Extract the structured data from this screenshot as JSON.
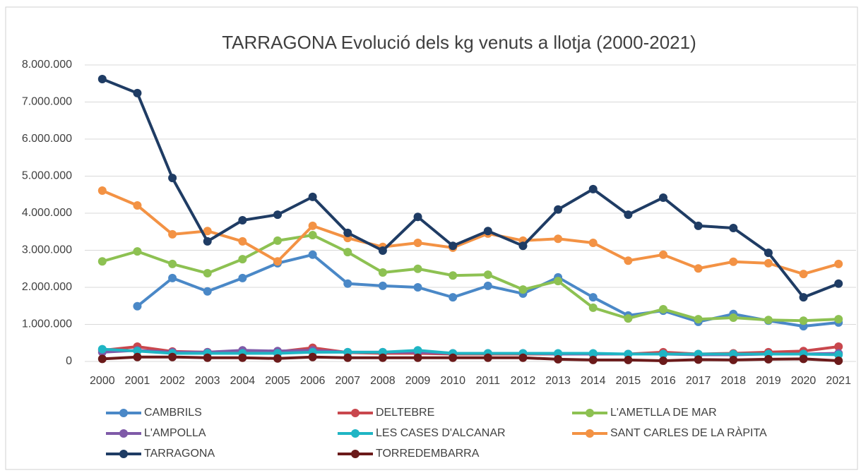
{
  "chart_data": {
    "type": "line",
    "title": "TARRAGONA Evolució dels kg venuts a llotja (2000-2021)",
    "categories": [
      "2000",
      "2001",
      "2002",
      "2003",
      "2004",
      "2005",
      "2006",
      "2007",
      "2008",
      "2009",
      "2010",
      "2011",
      "2012",
      "2013",
      "2014",
      "2015",
      "2016",
      "2017",
      "2018",
      "2019",
      "2020",
      "2021"
    ],
    "ylim": [
      0,
      8000000
    ],
    "yticks": [
      0,
      {
        "value": 1000000,
        "label": "1.000.000"
      },
      {
        "value": 2000000,
        "label": "2.000.000"
      },
      {
        "value": 3000000,
        "label": "3.000.000"
      },
      {
        "value": 4000000,
        "label": "4.000.000"
      },
      {
        "value": 5000000,
        "label": "5.000.000"
      },
      {
        "value": 6000000,
        "label": "6.000.000"
      },
      {
        "value": 7000000,
        "label": "7.000.000"
      },
      {
        "value": 8000000,
        "label": "8.000.000"
      }
    ],
    "grid": true,
    "legend": "bottom",
    "series": [
      {
        "name": "CAMBRILS",
        "color": "#4a88c7",
        "values": [
          null,
          1490000,
          2250000,
          1890000,
          2250000,
          2650000,
          2880000,
          2100000,
          2040000,
          2000000,
          1730000,
          2040000,
          1830000,
          2270000,
          1730000,
          1240000,
          1370000,
          1070000,
          1280000,
          1100000,
          950000,
          1050000
        ]
      },
      {
        "name": "DELTEBRE",
        "color": "#c9474d",
        "values": [
          300000,
          400000,
          270000,
          250000,
          280000,
          260000,
          370000,
          240000,
          220000,
          220000,
          200000,
          200000,
          200000,
          200000,
          200000,
          200000,
          250000,
          200000,
          220000,
          250000,
          280000,
          400000
        ]
      },
      {
        "name": "L'AMETLLA DE MAR",
        "color": "#8dc152",
        "values": [
          2700000,
          2970000,
          2630000,
          2380000,
          2760000,
          3260000,
          3410000,
          2950000,
          2400000,
          2500000,
          2320000,
          2340000,
          1940000,
          2170000,
          1450000,
          1160000,
          1410000,
          1140000,
          1180000,
          1120000,
          1100000,
          1140000
        ]
      },
      {
        "name": "L'AMPOLLA",
        "color": "#7f5aa8",
        "values": [
          250000,
          300000,
          250000,
          250000,
          300000,
          280000,
          300000,
          250000,
          250000,
          250000,
          220000,
          220000,
          220000,
          200000,
          200000,
          200000,
          200000,
          180000,
          180000,
          200000,
          200000,
          220000
        ]
      },
      {
        "name": "LES CASES D'ALCANAR",
        "color": "#1fb5c4",
        "values": [
          330000,
          280000,
          220000,
          220000,
          220000,
          220000,
          250000,
          250000,
          250000,
          300000,
          220000,
          220000,
          220000,
          220000,
          220000,
          200000,
          200000,
          200000,
          200000,
          200000,
          200000,
          180000
        ]
      },
      {
        "name": "SANT CARLES DE LA RÀPITA",
        "color": "#f39244",
        "values": [
          4610000,
          4210000,
          3430000,
          3520000,
          3240000,
          2700000,
          3660000,
          3330000,
          3090000,
          3200000,
          3070000,
          3450000,
          3260000,
          3310000,
          3200000,
          2720000,
          2880000,
          2510000,
          2690000,
          2650000,
          2360000,
          2630000
        ]
      },
      {
        "name": "TARRAGONA",
        "color": "#1f3c64",
        "values": [
          7620000,
          7240000,
          4950000,
          3240000,
          3810000,
          3960000,
          4440000,
          3470000,
          2990000,
          3900000,
          3120000,
          3520000,
          3120000,
          4100000,
          4650000,
          3960000,
          4420000,
          3660000,
          3600000,
          2930000,
          1730000,
          2100000
        ]
      },
      {
        "name": "TORREDEMBARRA",
        "color": "#6b1a1a",
        "values": [
          70000,
          120000,
          120000,
          100000,
          100000,
          80000,
          120000,
          100000,
          100000,
          100000,
          100000,
          100000,
          100000,
          60000,
          40000,
          40000,
          20000,
          50000,
          40000,
          60000,
          70000,
          20000
        ]
      }
    ]
  }
}
